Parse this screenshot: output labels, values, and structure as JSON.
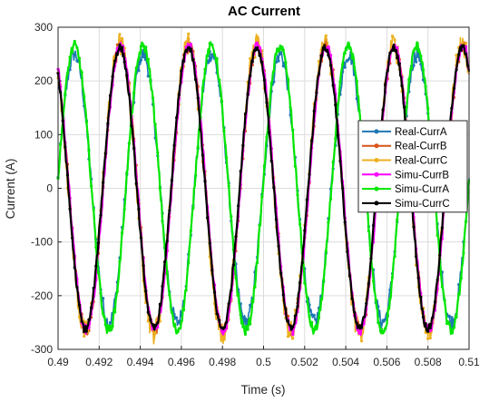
{
  "chart_data": {
    "type": "line",
    "title": "AC Current",
    "xlabel": "Time (s)",
    "ylabel": "Current (A)",
    "xlim": [
      0.49,
      0.51
    ],
    "ylim": [
      -300,
      300
    ],
    "xticks": [
      0.49,
      0.492,
      0.494,
      0.496,
      0.498,
      0.5,
      0.502,
      0.504,
      0.506,
      0.508,
      0.51
    ],
    "xtick_labels": [
      "0.49",
      "0.492",
      "0.494",
      "0.496",
      "0.498",
      "0.5",
      "0.502",
      "0.504",
      "0.506",
      "0.508",
      "0.51"
    ],
    "yticks": [
      -300,
      -200,
      -100,
      0,
      100,
      200,
      300
    ],
    "ytick_labels": [
      "-300",
      "-200",
      "-100",
      "0",
      "100",
      "200",
      "300"
    ],
    "grid": true,
    "legend_position": "right",
    "series": [
      {
        "name": "Real-CurrA",
        "color": "#1f77b4",
        "amplitude": 250,
        "frequency_hz": 300,
        "peak_time": 0.4908,
        "noise": 14,
        "marker": "dot"
      },
      {
        "name": "Real-CurrB",
        "color": "#d95319",
        "amplitude": 265,
        "frequency_hz": 300,
        "peak_time": 0.4897,
        "noise": 14,
        "marker": "dot"
      },
      {
        "name": "Real-CurrC",
        "color": "#edb120",
        "amplitude": 268,
        "frequency_hz": 300,
        "peak_time": 0.493,
        "noise": 22,
        "marker": "dot"
      },
      {
        "name": "Simu-CurrB",
        "color": "#ff00ff",
        "amplitude": 265,
        "frequency_hz": 300,
        "peak_time": 0.4897,
        "noise": 9,
        "marker": "dot"
      },
      {
        "name": "Simu-CurrA",
        "color": "#00e600",
        "amplitude": 265,
        "frequency_hz": 300,
        "peak_time": 0.4908,
        "noise": 9,
        "marker": "dot"
      },
      {
        "name": "Simu-CurrC",
        "color": "#000000",
        "amplitude": 262,
        "frequency_hz": 300,
        "peak_time": 0.493,
        "noise": 7,
        "marker": "dot"
      }
    ]
  }
}
